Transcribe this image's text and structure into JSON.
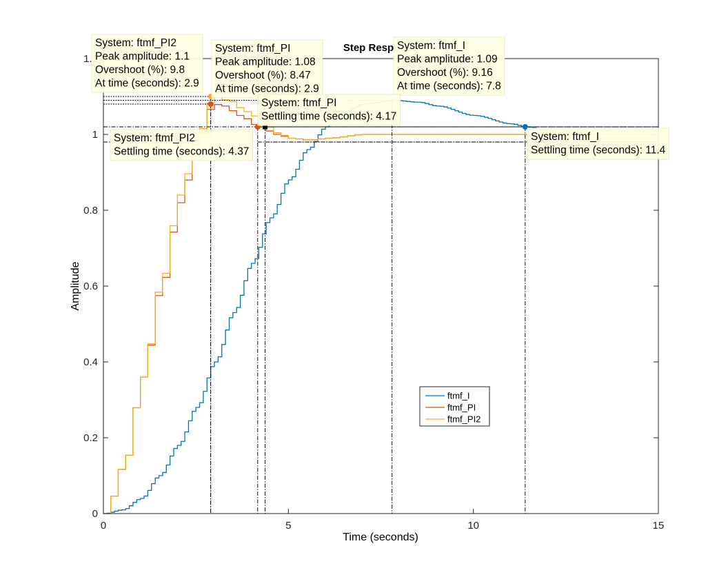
{
  "chart_data": {
    "type": "line",
    "title": "Step Response",
    "xlabel": "Time (seconds)",
    "ylabel": "Amplitude",
    "xlim": [
      0,
      15
    ],
    "ylim": [
      0,
      1.2
    ],
    "xticks": [
      0,
      5,
      10,
      15
    ],
    "yticks": [
      0,
      0.2,
      0.4,
      0.6,
      0.8,
      1,
      1.2
    ],
    "xtick_labels": [
      "0",
      "5",
      "10",
      "15"
    ],
    "ytick_labels": [
      "0",
      "0.2",
      "0.4",
      "0.6",
      "0.8",
      "1",
      "1.2"
    ],
    "grid": false,
    "legend_position": "lower-right-center",
    "settling_band": [
      0.98,
      1.02
    ],
    "series": [
      {
        "name": "ftmf_I",
        "color": "#0072BD",
        "step": 0.1,
        "points": [
          [
            0,
            0
          ],
          [
            0.5,
            0.01
          ],
          [
            1,
            0.04
          ],
          [
            1.5,
            0.1
          ],
          [
            2,
            0.18
          ],
          [
            2.5,
            0.28
          ],
          [
            3,
            0.4
          ],
          [
            3.5,
            0.53
          ],
          [
            4,
            0.66
          ],
          [
            4.5,
            0.78
          ],
          [
            5,
            0.88
          ],
          [
            5.5,
            0.96
          ],
          [
            6,
            1.02
          ],
          [
            6.5,
            1.06
          ],
          [
            7,
            1.08
          ],
          [
            7.8,
            1.09
          ],
          [
            8.5,
            1.085
          ],
          [
            9,
            1.075
          ],
          [
            10,
            1.05
          ],
          [
            11,
            1.028
          ],
          [
            11.4,
            1.02
          ],
          [
            12,
            1.01
          ]
        ]
      },
      {
        "name": "ftmf_PI",
        "color": "#D95319",
        "step": 0.2,
        "points": [
          [
            0,
            0
          ],
          [
            0.5,
            0.13
          ],
          [
            1,
            0.36
          ],
          [
            1.5,
            0.6
          ],
          [
            2,
            0.82
          ],
          [
            2.5,
            0.99
          ],
          [
            2.9,
            1.08
          ],
          [
            3.2,
            1.075
          ],
          [
            3.6,
            1.05
          ],
          [
            4.17,
            1.02
          ],
          [
            4.6,
            1.0
          ],
          [
            5,
            0.99
          ],
          [
            5.5,
            0.985
          ],
          [
            6,
            0.99
          ],
          [
            7,
            1.0
          ],
          [
            8,
            1.0
          ],
          [
            15,
            1.0
          ]
        ]
      },
      {
        "name": "ftmf_PI2",
        "color": "#EDB120",
        "step": 0.2,
        "points": [
          [
            0,
            0
          ],
          [
            0.5,
            0.13
          ],
          [
            1,
            0.36
          ],
          [
            1.5,
            0.61
          ],
          [
            2,
            0.84
          ],
          [
            2.5,
            1.0
          ],
          [
            2.9,
            1.098
          ],
          [
            3.3,
            1.09
          ],
          [
            3.8,
            1.06
          ],
          [
            4.37,
            1.02
          ],
          [
            4.7,
            1.0
          ],
          [
            5,
            0.99
          ],
          [
            5.5,
            0.985
          ],
          [
            6,
            0.99
          ],
          [
            7,
            1.0
          ],
          [
            8,
            1.0
          ],
          [
            15,
            1.0
          ]
        ]
      }
    ],
    "datatips": [
      {
        "key": "pi2_peak",
        "series": "ftmf_PI2",
        "x": 2.9,
        "y": 1.1,
        "color": "#EDB120",
        "lines": [
          "System: ftmf_PI2",
          "Peak amplitude: 1.1",
          "Overshoot (%): 9.8",
          "At time (seconds): 2.9"
        ]
      },
      {
        "key": "pi_peak",
        "series": "ftmf_PI",
        "x": 2.9,
        "y": 1.08,
        "color": "#D95319",
        "lines": [
          "System: ftmf_PI",
          "Peak amplitude: 1.08",
          "Overshoot (%): 8.47",
          "At time (seconds): 2.9"
        ]
      },
      {
        "key": "i_peak",
        "series": "ftmf_I",
        "x": 7.8,
        "y": 1.09,
        "color": "#8FC3E6",
        "lines": [
          "System: ftmf_I",
          "Peak amplitude: 1.09",
          "Overshoot (%): 9.16",
          "At time (seconds): 7.8"
        ]
      },
      {
        "key": "pi_settle",
        "series": "ftmf_PI",
        "x": 4.17,
        "y": 1.02,
        "color": "#D95319",
        "lines": [
          "System: ftmf_PI",
          "Settling time (seconds): 4.17"
        ]
      },
      {
        "key": "pi2_settle",
        "series": "ftmf_PI2",
        "x": 4.37,
        "y": 1.02,
        "color": "#000000",
        "lines": [
          "System: ftmf_PI2",
          "Settling time (seconds): 4.37"
        ]
      },
      {
        "key": "i_settle",
        "series": "ftmf_I",
        "x": 11.4,
        "y": 1.02,
        "color": "#0072BD",
        "lines": [
          "System: ftmf_I",
          "Settling time (seconds): 11.4"
        ]
      }
    ]
  }
}
